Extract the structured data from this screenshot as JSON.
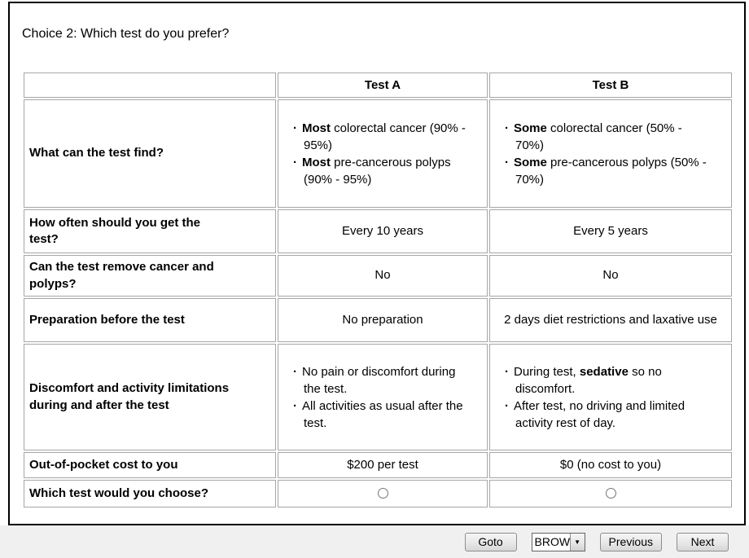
{
  "title": "Choice 2: Which test do you prefer?",
  "table": {
    "columns": [
      "",
      "Test A",
      "Test B"
    ],
    "rows": {
      "find": {
        "label": "What can the test find?",
        "a_items": [
          {
            "segments": [
              {
                "t": "Most",
                "b": true
              },
              {
                "t": " colorectal cancer (90% - 95%)",
                "b": false
              }
            ]
          },
          {
            "segments": [
              {
                "t": "Most",
                "b": true
              },
              {
                "t": " pre-cancerous polyps (90% - 95%)",
                "b": false
              }
            ]
          }
        ],
        "b_items": [
          {
            "segments": [
              {
                "t": "Some",
                "b": true
              },
              {
                "t": " colorectal cancer (50% - 70%)",
                "b": false
              }
            ]
          },
          {
            "segments": [
              {
                "t": "Some",
                "b": true
              },
              {
                "t": " pre-cancerous polyps (50% - 70%)",
                "b": false
              }
            ]
          }
        ]
      },
      "frequency": {
        "label": "How often should you get the test?",
        "a": "Every 10 years",
        "b": "Every 5 years"
      },
      "removal": {
        "label": "Can the test remove cancer and polyps?",
        "a": "No",
        "b": "No"
      },
      "preparation": {
        "label": "Preparation before the test",
        "a": "No preparation",
        "b": "2 days diet restrictions and laxative use"
      },
      "discomfort": {
        "label": "Discomfort and activity limitations during and after the test",
        "a_items": [
          {
            "segments": [
              {
                "t": "No pain or discomfort during the test.",
                "b": false
              }
            ]
          },
          {
            "segments": [
              {
                "t": "All activities as usual after the test.",
                "b": false
              }
            ]
          }
        ],
        "b_items": [
          {
            "segments": [
              {
                "t": "During test, ",
                "b": false
              },
              {
                "t": "sedative",
                "b": true
              },
              {
                "t": " so no discomfort.",
                "b": false
              }
            ]
          },
          {
            "segments": [
              {
                "t": "After test, no driving and limited activity rest of day.",
                "b": false
              }
            ]
          }
        ]
      },
      "cost": {
        "label": "Out-of-pocket cost to you",
        "a": "$200 per test",
        "b": "$0 (no cost to you)"
      },
      "choose": {
        "label": "Which test would you choose?",
        "a_selected": false,
        "b_selected": false
      }
    }
  },
  "footer": {
    "goto_label": "Goto",
    "combo_value": "BROWS",
    "previous_label": "Previous",
    "next_label": "Next"
  }
}
